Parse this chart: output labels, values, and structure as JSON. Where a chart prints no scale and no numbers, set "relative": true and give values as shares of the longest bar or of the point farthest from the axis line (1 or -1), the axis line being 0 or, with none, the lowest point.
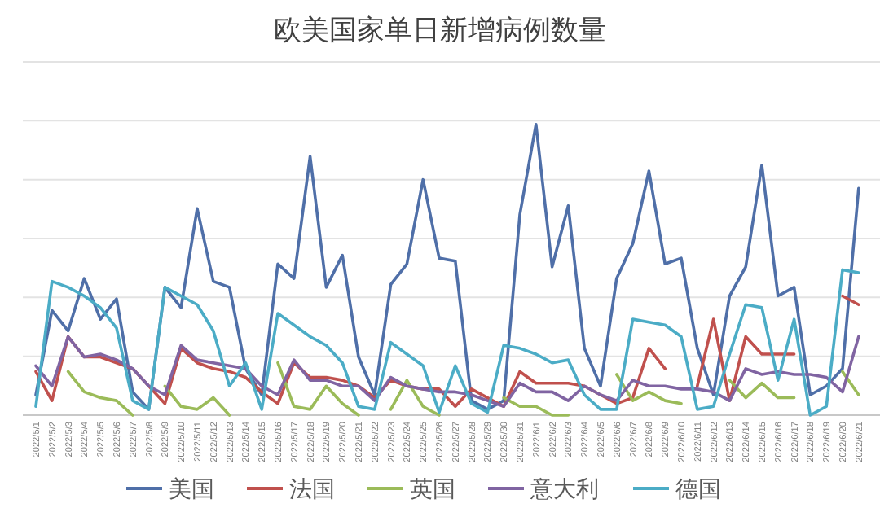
{
  "chart_data": {
    "type": "line",
    "title": "欧美国家单日新增病例数量",
    "relative": true,
    "grid": "y",
    "legend": "bottom",
    "marker": "none",
    "line_style": "solid",
    "categories": [
      "2022/5/1",
      "2022/5/2",
      "2022/5/3",
      "2022/5/4",
      "2022/5/5",
      "2022/5/6",
      "2022/5/7",
      "2022/5/8",
      "2022/5/9",
      "2022/5/10",
      "2022/5/11",
      "2022/5/12",
      "2022/5/13",
      "2022/5/14",
      "2022/5/15",
      "2022/5/16",
      "2022/5/17",
      "2022/5/18",
      "2022/5/19",
      "2022/5/20",
      "2022/5/21",
      "2022/5/22",
      "2022/5/23",
      "2022/5/24",
      "2022/5/25",
      "2022/5/26",
      "2022/5/27",
      "2022/5/28",
      "2022/5/29",
      "2022/5/30",
      "2022/5/31",
      "2022/6/1",
      "2022/6/2",
      "2022/6/3",
      "2022/6/4",
      "2022/6/5",
      "2022/6/6",
      "2022/6/7",
      "2022/6/8",
      "2022/6/9",
      "2022/6/10",
      "2022/6/11",
      "2022/6/12",
      "2022/6/13",
      "2022/6/14",
      "2022/6/15",
      "2022/6/16",
      "2022/6/17",
      "2022/6/18",
      "2022/6/19",
      "2022/6/20",
      "2022/6/21"
    ],
    "series": [
      {
        "name": "美国",
        "color": "#4f6fa8",
        "values": [
          0.07,
          0.36,
          0.29,
          0.47,
          0.33,
          0.4,
          0.08,
          0.02,
          0.44,
          0.37,
          0.71,
          0.46,
          0.44,
          0.16,
          0.07,
          0.52,
          0.47,
          0.89,
          0.44,
          0.55,
          0.2,
          0.07,
          0.45,
          0.52,
          0.81,
          0.54,
          0.53,
          0.05,
          0.02,
          0.05,
          0.69,
          1,
          0.51,
          0.72,
          0.23,
          0.1,
          0.47,
          0.59,
          0.84,
          0.52,
          0.54,
          0.23,
          0.07,
          0.41,
          0.51,
          0.86,
          0.41,
          0.44,
          0.07,
          0.1,
          0.16,
          0.78
        ]
      },
      {
        "name": "法国",
        "color": "#c0504d",
        "values": [
          0.15,
          0.05,
          0.27,
          0.2,
          0.2,
          0.18,
          0.16,
          0.1,
          0.04,
          0.23,
          0.18,
          0.16,
          0.15,
          0.13,
          0.08,
          0.04,
          0.18,
          0.13,
          0.13,
          0.12,
          0.1,
          0.06,
          0.12,
          0.1,
          0.09,
          0.09,
          0.03,
          0.09,
          0.06,
          0.03,
          0.15,
          0.11,
          0.11,
          0.11,
          0.1,
          0.07,
          0.04,
          0.06,
          0.23,
          0.16,
          null,
          0.1,
          0.33,
          0.05,
          0.27,
          0.21,
          0.21,
          0.21,
          null,
          null,
          0.41,
          0.38
        ]
      },
      {
        "name": "英国",
        "color": "#9bbb59",
        "values": [
          null,
          null,
          0.15,
          0.08,
          0.06,
          0.05,
          0,
          null,
          0.1,
          0.03,
          0.02,
          0.06,
          0,
          null,
          null,
          0.18,
          0.03,
          0.02,
          0.1,
          0.04,
          0,
          null,
          0.02,
          0.12,
          0.03,
          0,
          null,
          null,
          null,
          0.06,
          0.03,
          0.03,
          0,
          0,
          null,
          null,
          0.14,
          0.05,
          0.08,
          0.05,
          0.04,
          null,
          null,
          0.12,
          0.06,
          0.11,
          0.06,
          0.06,
          null,
          null,
          0.15,
          0.07
        ]
      },
      {
        "name": "意大利",
        "color": "#8064a2",
        "values": [
          0.17,
          0.1,
          0.27,
          0.2,
          0.21,
          0.19,
          0.16,
          0.1,
          0.07,
          0.24,
          0.19,
          0.18,
          0.17,
          0.16,
          0.1,
          0.07,
          0.19,
          0.12,
          0.12,
          0.1,
          0.1,
          0.05,
          0.13,
          0.1,
          0.09,
          0.08,
          0.08,
          0.07,
          0.05,
          0.03,
          0.11,
          0.08,
          0.08,
          0.05,
          0.1,
          0.07,
          0.05,
          0.12,
          0.1,
          0.1,
          0.09,
          0.09,
          0.08,
          0.05,
          0.16,
          0.14,
          0.15,
          0.14,
          0.14,
          0.13,
          0.08,
          0.27
        ]
      },
      {
        "name": "德国",
        "color": "#4bacc6",
        "values": [
          0.03,
          0.46,
          0.44,
          0.41,
          0.37,
          0.3,
          0.05,
          0.02,
          0.44,
          0.41,
          0.38,
          0.29,
          0.1,
          0.18,
          0.02,
          0.35,
          0.31,
          0.27,
          0.24,
          0.18,
          0.03,
          0.02,
          0.25,
          0.21,
          0.17,
          0.01,
          0.17,
          0.04,
          0.01,
          0.24,
          0.23,
          0.21,
          0.18,
          0.19,
          0.07,
          0.02,
          0.02,
          0.33,
          0.32,
          0.31,
          0.27,
          0.02,
          0.03,
          0.21,
          0.38,
          0.37,
          0.12,
          0.33,
          0,
          0.03,
          0.5,
          0.49
        ]
      }
    ]
  }
}
